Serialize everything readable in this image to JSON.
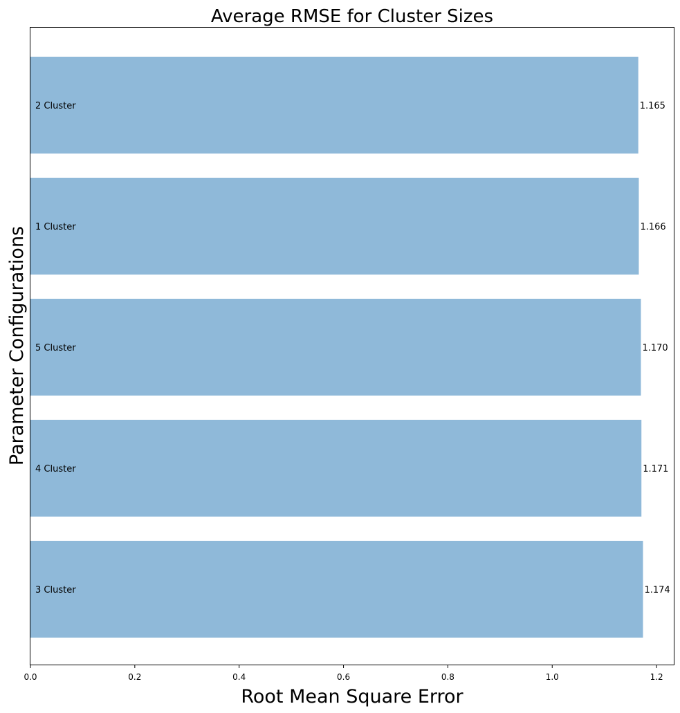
{
  "chart_data": {
    "type": "bar",
    "orientation": "horizontal",
    "title": "Average RMSE for Cluster Sizes",
    "xlabel": "Root Mean Square Error",
    "ylabel": "Parameter Configurations",
    "categories": [
      "2 Cluster",
      "1 Cluster",
      "5 Cluster",
      "4 Cluster",
      "3 Cluster"
    ],
    "values": [
      1.165,
      1.166,
      1.17,
      1.171,
      1.174
    ],
    "value_labels": [
      "1.165",
      "1.166",
      "1.170",
      "1.171",
      "1.174"
    ],
    "xlim": [
      0,
      1.233
    ],
    "xticks": [
      0.0,
      0.2,
      0.4,
      0.6,
      0.8,
      1.0,
      1.2
    ],
    "xtick_labels": [
      "0.0",
      "0.2",
      "0.4",
      "0.6",
      "0.8",
      "1.0",
      "1.2"
    ],
    "bar_color": "#8fb9d9",
    "grid": false,
    "legend": "none"
  }
}
